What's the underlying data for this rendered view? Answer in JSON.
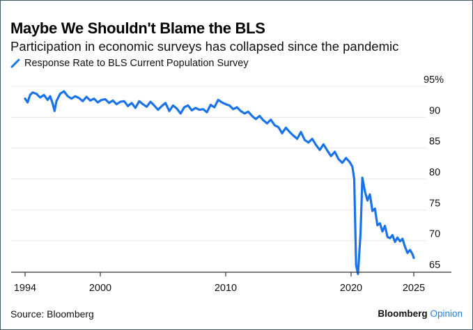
{
  "title": "Maybe We Shouldn't Blame the BLS",
  "subtitle": "Participation in economic surveys has collapsed since the pandemic",
  "source": "Source: Bloomberg",
  "brand": {
    "name": "Bloomberg",
    "suffix": "Opinion",
    "suffix_color": "#2a7de1"
  },
  "colors": {
    "line": "#1a73e8",
    "grid": "#e6e6e6",
    "axis": "#333333",
    "border": "#3d5a66"
  },
  "chart_data": {
    "type": "line",
    "title": "Maybe We Shouldn't Blame the BLS",
    "subtitle": "Participation in economic surveys has collapsed since the pandemic",
    "xlabel": "",
    "ylabel": "",
    "legend": {
      "entries": [
        "Response Rate to BLS Current Population Survey"
      ],
      "placement": "top-left"
    },
    "grid": true,
    "xlim": [
      1994,
      2026.5
    ],
    "ylim": [
      65,
      95
    ],
    "x_ticks": [
      1994,
      2000,
      2010,
      2020,
      2025
    ],
    "x_tick_labels": [
      "1994",
      "2000",
      "2010",
      "2020",
      "2025"
    ],
    "y_ticks": [
      65,
      70,
      75,
      80,
      85,
      90,
      95
    ],
    "y_tick_labels": [
      "65",
      "70",
      "75",
      "80",
      "85",
      "90",
      "95%"
    ],
    "y_axis_side": "right",
    "series": [
      {
        "name": "Response Rate to BLS Current Population Survey",
        "x": [
          1994.0,
          1994.2,
          1994.4,
          1994.6,
          1994.9,
          1995.2,
          1995.5,
          1995.8,
          1996.0,
          1996.2,
          1996.35,
          1996.5,
          1996.8,
          1997.1,
          1997.4,
          1997.7,
          1998.0,
          1998.3,
          1998.6,
          1998.9,
          1999.2,
          1999.5,
          1999.8,
          2000.1,
          2000.4,
          2000.7,
          2001.0,
          2001.3,
          2001.6,
          2001.9,
          2002.2,
          2002.5,
          2002.8,
          2003.1,
          2003.4,
          2003.7,
          2004.0,
          2004.3,
          2004.6,
          2004.9,
          2005.2,
          2005.5,
          2005.8,
          2006.1,
          2006.4,
          2006.7,
          2007.0,
          2007.3,
          2007.6,
          2007.9,
          2008.2,
          2008.5,
          2008.8,
          2009.1,
          2009.4,
          2009.7,
          2010.0,
          2010.3,
          2010.6,
          2010.9,
          2011.2,
          2011.5,
          2011.8,
          2012.1,
          2012.4,
          2012.7,
          2013.0,
          2013.3,
          2013.6,
          2013.9,
          2014.2,
          2014.5,
          2014.8,
          2015.1,
          2015.4,
          2015.7,
          2016.0,
          2016.3,
          2016.6,
          2016.9,
          2017.2,
          2017.5,
          2017.8,
          2018.1,
          2018.4,
          2018.7,
          2019.0,
          2019.3,
          2019.6,
          2019.9,
          2020.1,
          2020.25,
          2020.4,
          2020.55,
          2020.75,
          2020.9,
          2021.1,
          2021.3,
          2021.5,
          2021.7,
          2021.9,
          2022.1,
          2022.3,
          2022.5,
          2022.7,
          2022.9,
          2023.1,
          2023.3,
          2023.5,
          2023.7,
          2023.9,
          2024.1,
          2024.3,
          2024.5,
          2024.7,
          2024.9,
          2025.0
        ],
        "values": [
          93.0,
          92.4,
          93.6,
          94.0,
          93.8,
          93.2,
          93.6,
          92.8,
          93.4,
          92.2,
          91.0,
          92.6,
          93.8,
          94.2,
          93.4,
          93.0,
          93.4,
          93.1,
          92.6,
          93.3,
          92.7,
          93.0,
          92.4,
          92.8,
          92.9,
          92.3,
          92.7,
          92.1,
          92.5,
          92.6,
          91.8,
          92.3,
          91.5,
          92.6,
          92.1,
          91.7,
          92.5,
          91.9,
          91.2,
          91.8,
          92.3,
          91.0,
          91.9,
          91.4,
          90.6,
          91.6,
          91.9,
          91.1,
          91.5,
          91.2,
          91.3,
          90.8,
          92.0,
          91.6,
          92.8,
          92.4,
          92.1,
          91.9,
          91.3,
          91.6,
          91.0,
          90.6,
          90.9,
          90.2,
          89.7,
          90.2,
          89.5,
          89.0,
          89.6,
          88.7,
          88.4,
          87.4,
          88.3,
          87.6,
          87.0,
          86.5,
          87.6,
          86.3,
          85.9,
          86.5,
          85.5,
          84.7,
          85.6,
          84.6,
          83.7,
          84.4,
          83.2,
          82.6,
          83.4,
          82.7,
          82.0,
          80.0,
          66.0,
          64.6,
          71.0,
          80.2,
          78.0,
          76.5,
          77.5,
          74.8,
          75.2,
          72.5,
          72.8,
          71.5,
          72.4,
          70.6,
          70.4,
          70.9,
          69.8,
          70.5,
          69.9,
          70.3,
          69.0,
          68.0,
          68.5,
          67.8,
          67.2
        ]
      }
    ]
  }
}
